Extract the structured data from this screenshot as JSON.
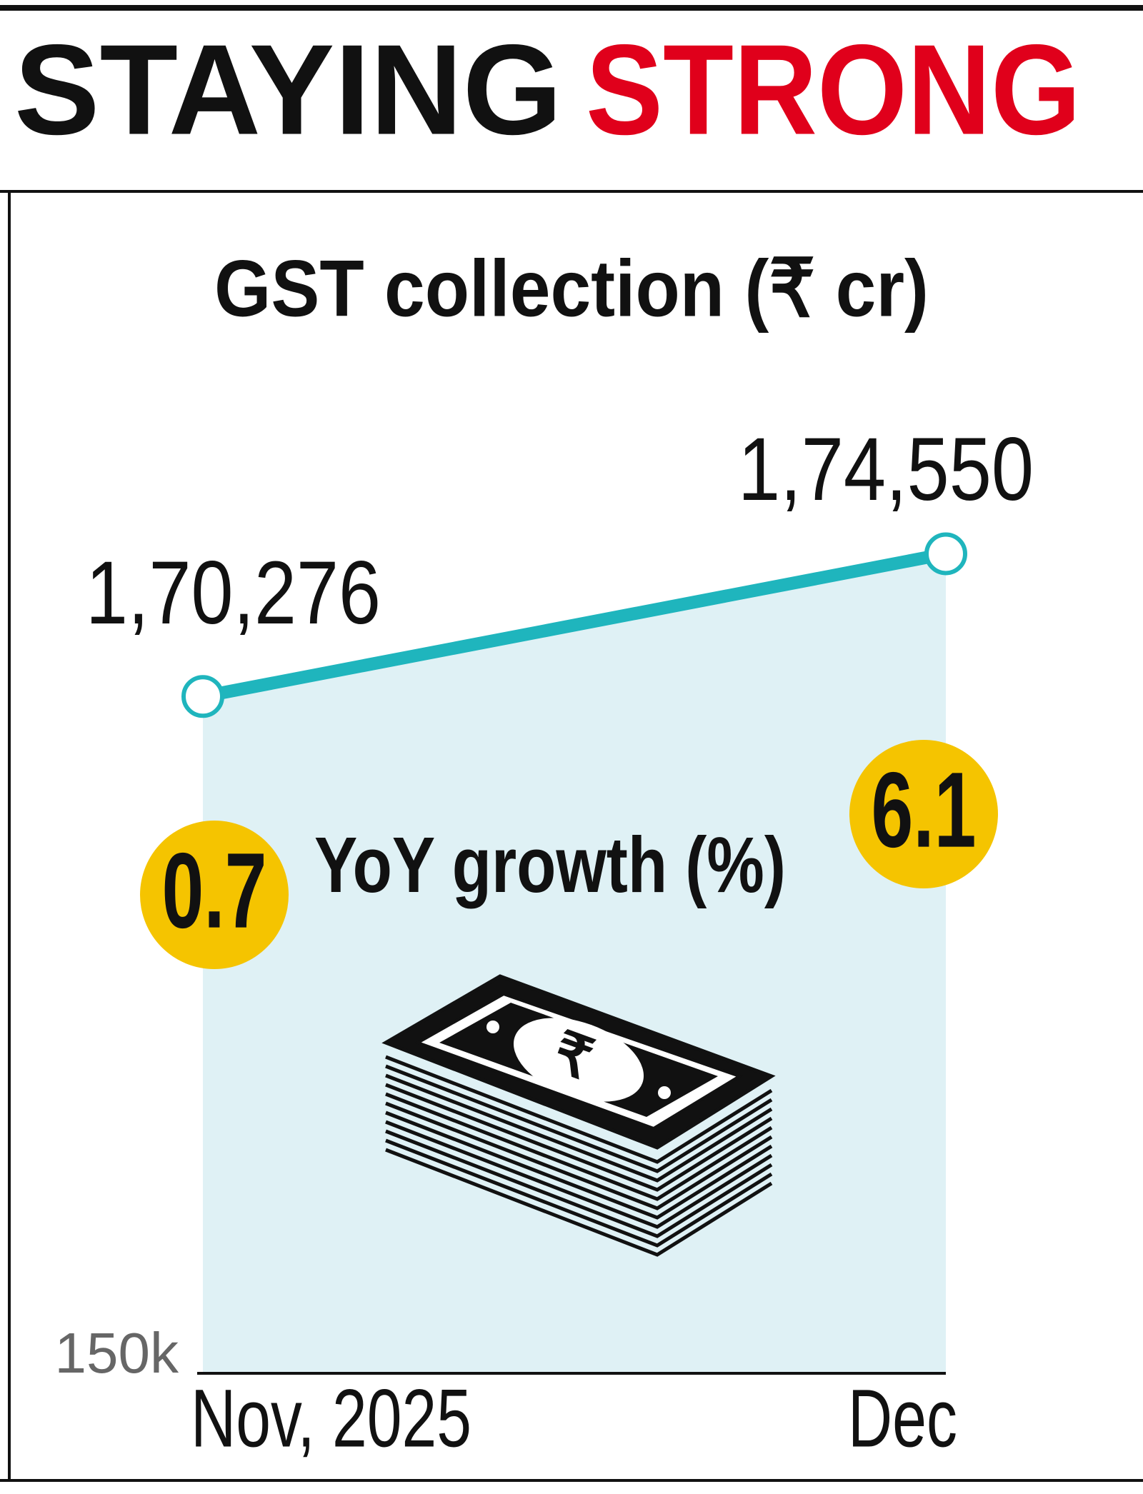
{
  "chart_data": {
    "type": "line",
    "title": [
      "STAYING",
      "STRONG"
    ],
    "title_colors": [
      "#111111",
      "#e0001b"
    ],
    "subtitle": "GST collection (₹ cr)",
    "categories": [
      "Nov, 2025",
      "Dec"
    ],
    "series": [
      {
        "values": [
          170276,
          174550
        ],
        "value_labels": [
          "1,70,276",
          "1,74,550"
        ],
        "color": "#1fb5bd",
        "fill": "#dff1f5"
      }
    ],
    "growth": {
      "label": "YoY growth (%)",
      "values": [
        0.7,
        6.1
      ],
      "color": "#f5c400"
    },
    "ylim": [
      150000,
      185000
    ],
    "yticks": [
      {
        "value": 150000,
        "label": "150k"
      }
    ]
  }
}
